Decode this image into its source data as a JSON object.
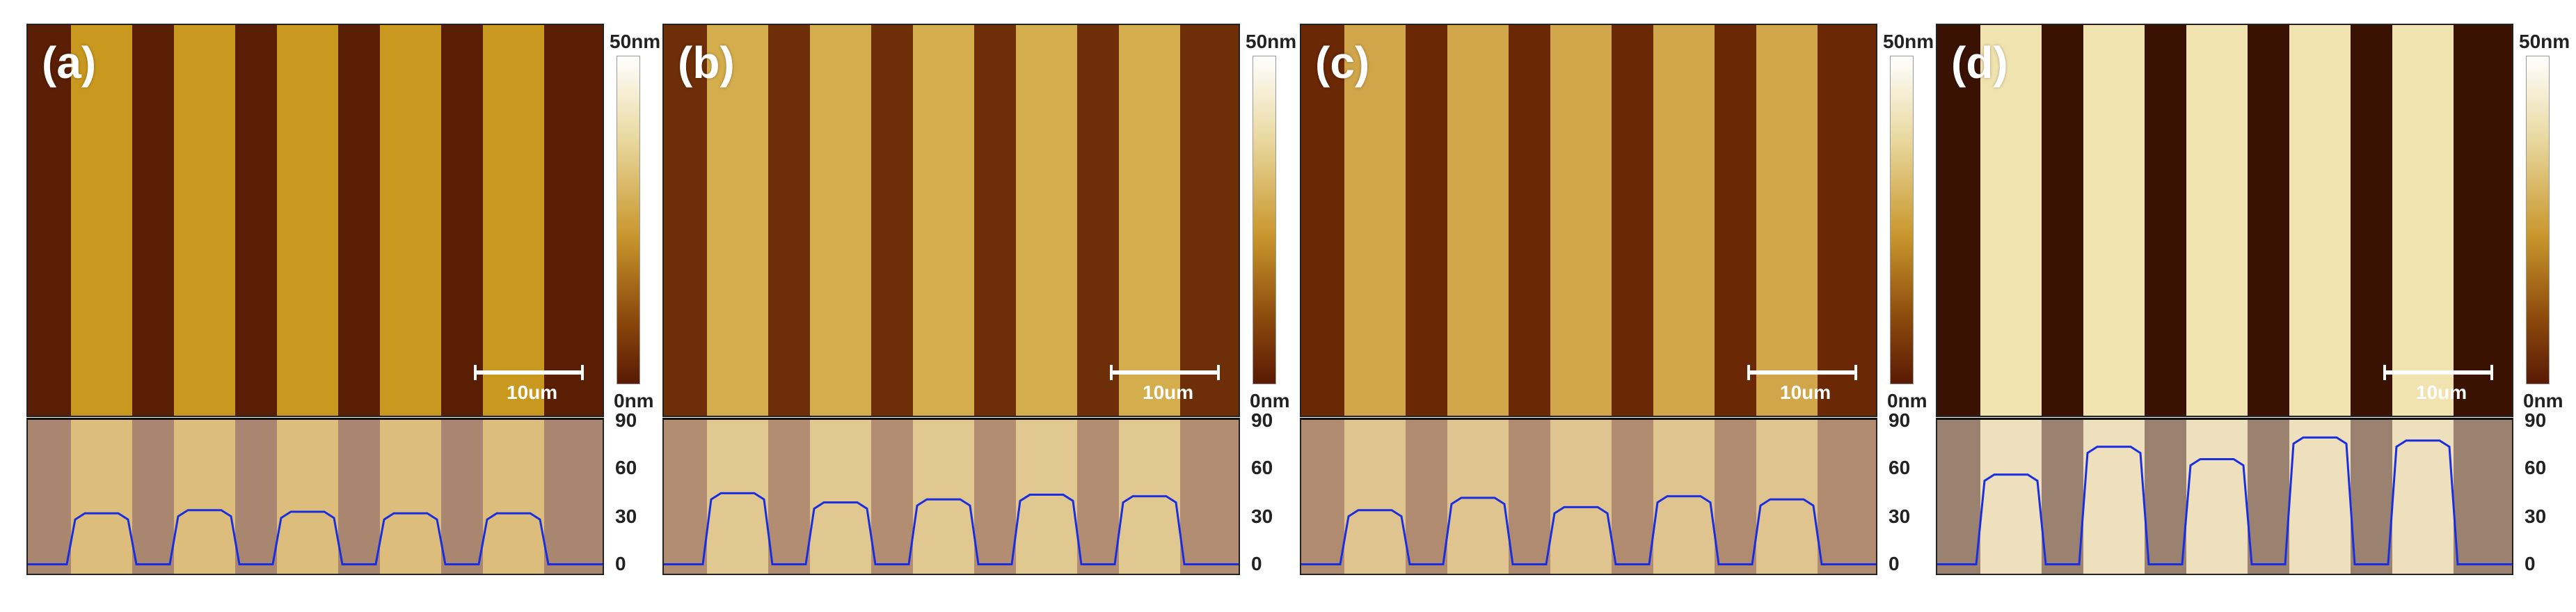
{
  "panels": [
    {
      "label": "(a)",
      "scalebar": "10um",
      "colorbar_max": "50nm",
      "colorbar_min": "0nm",
      "y_ticks": [
        "90",
        "60",
        "30",
        "0"
      ],
      "stripe_colors": [
        "#5a1e04",
        "#c9981e"
      ],
      "profile_heights_nm": [
        35,
        37,
        36,
        35,
        35
      ]
    },
    {
      "label": "(b)",
      "scalebar": "10um",
      "colorbar_max": "50nm",
      "colorbar_min": "0nm",
      "y_ticks": [
        "90",
        "60",
        "30",
        "0"
      ],
      "stripe_colors": [
        "#6e2e08",
        "#d4ad4c"
      ],
      "profile_heights_nm": [
        48,
        42,
        44,
        47,
        46
      ]
    },
    {
      "label": "(c)",
      "scalebar": "10um",
      "colorbar_max": "50nm",
      "colorbar_min": "0nm",
      "y_ticks": [
        "90",
        "60",
        "30",
        "0"
      ],
      "stripe_colors": [
        "#6a2804",
        "#d1a64a"
      ],
      "profile_heights_nm": [
        37,
        45,
        39,
        46,
        44
      ]
    },
    {
      "label": "(d)",
      "scalebar": "10um",
      "colorbar_max": "50nm",
      "colorbar_min": "0nm",
      "y_ticks": [
        "90",
        "60",
        "30",
        "0"
      ],
      "stripe_colors": [
        "#3a1204",
        "#f1e3b0"
      ],
      "profile_heights_nm": [
        60,
        78,
        70,
        84,
        82
      ]
    }
  ],
  "colors": {
    "profile": "#1a2ee0",
    "overlay": "rgba(235,220,200,0.55)"
  }
}
